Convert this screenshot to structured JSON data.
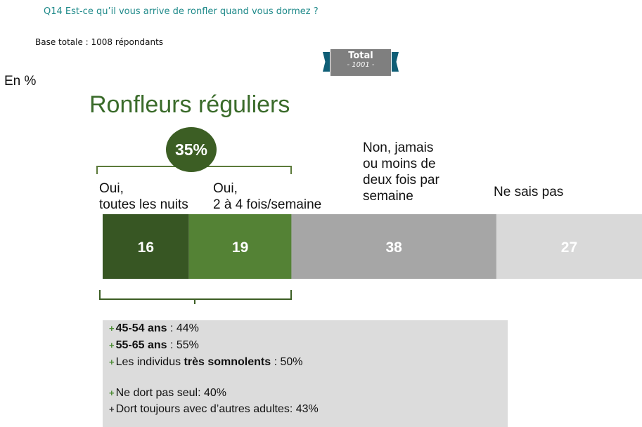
{
  "header": {
    "question": "Q14 Est-ce qu’il vous arrive de ronfler quand vous dormez ?",
    "base": "Base totale : 1008 répondants",
    "total_label": "Total",
    "total_n": "- 1001 -",
    "unit": "En %"
  },
  "headline": "Ronfleurs réguliers",
  "group_total": "35%",
  "colors": {
    "dark_green": "#375623",
    "mid_green": "#548235",
    "dark_gray": "#a6a6a6",
    "light_gray": "#d9d9d9"
  },
  "chart_data": {
    "type": "bar",
    "orientation": "horizontal-stacked",
    "categories": [
      "Oui,\ntoutes les nuits",
      "Oui,\n2 à 4 fois/semaine",
      "Non, jamais\nou moins de\ndeux fois par\nsemaine",
      "Ne sais pas"
    ],
    "values": [
      16,
      19,
      38,
      27
    ],
    "title": "Ronfleurs réguliers",
    "xlabel": "",
    "ylabel": ""
  },
  "details": {
    "lines": [
      {
        "bold": "45-54 ans",
        "text": " : 44%",
        "pre": ""
      },
      {
        "bold": "55-65 ans",
        "text": " : 55%",
        "pre": ""
      },
      {
        "bold": "très somnolents",
        "text": " : 50%",
        "pre": "Les individus "
      }
    ],
    "lines2": [
      {
        "text": "Ne dort pas seul: 40%"
      },
      {
        "text": "Dort toujours avec d’autres adultes: 43%"
      }
    ]
  }
}
